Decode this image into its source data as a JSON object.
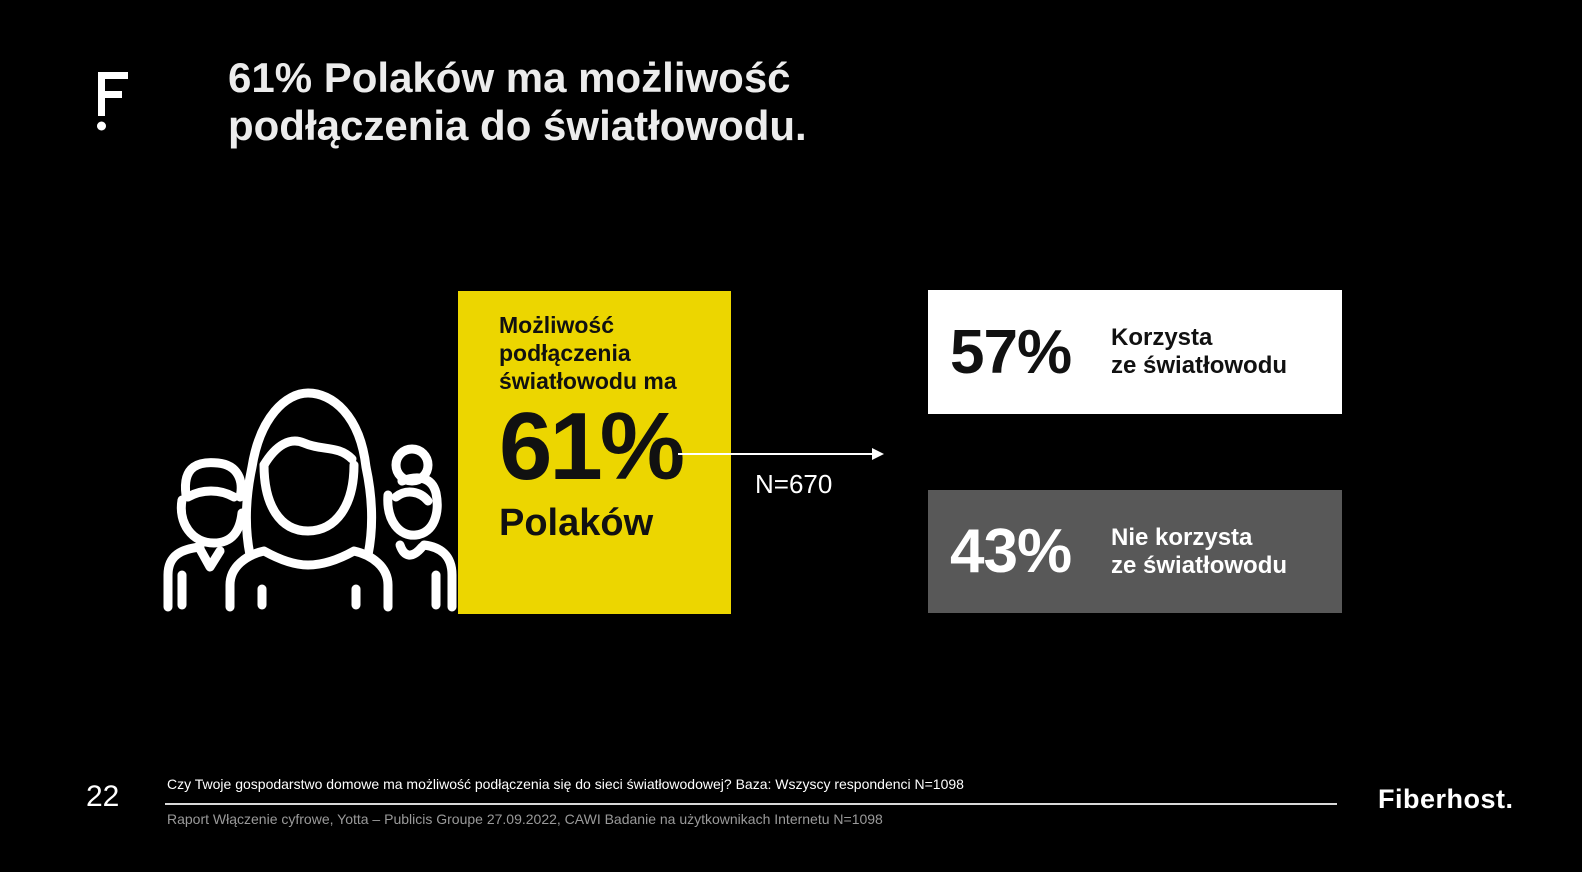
{
  "header": {
    "logo_icon": "fiberhost-f-logo-icon",
    "title_line1": "61% Polaków ma możliwość",
    "title_line2": "podłączenia do światłowodu."
  },
  "highlight": {
    "icon": "people-group-icon",
    "label": "Możliwość podłączenia światłowodu ma",
    "value": "61%",
    "subject": "Polaków",
    "accent_color": "#ecd600"
  },
  "connector": {
    "arrow_icon": "arrow-right-icon",
    "base_label": "N=670"
  },
  "breakdown": [
    {
      "value": "57%",
      "label_line1": "Korzysta",
      "label_line2": "ze światłowodu",
      "bg_color": "#ffffff"
    },
    {
      "value": "43%",
      "label_line1": "Nie korzysta",
      "label_line2": "ze światłowodu",
      "bg_color": "#585858"
    }
  ],
  "footer": {
    "page_number": "22",
    "question": "Czy Twoje gospodarstwo domowe ma możliwość podłączenia się do sieci światłowodowej? Baza: Wszyscy respondenci N=1098",
    "source": "Raport Włączenie cyfrowe, Yotta – Publicis Groupe 27.09.2022, CAWI Badanie na użytkownikach Internetu N=1098",
    "brand": "Fiberhost."
  }
}
